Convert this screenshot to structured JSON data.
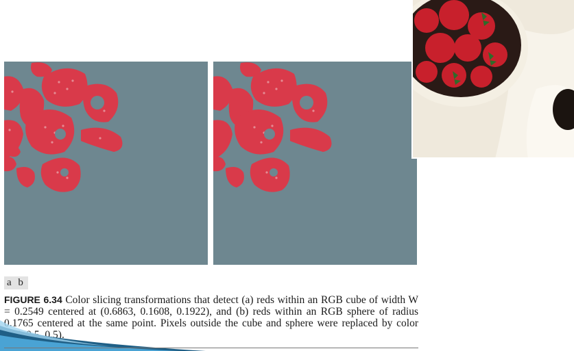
{
  "subfigure_labels": "a b",
  "caption": {
    "label": "FIGURE 6.34",
    "text": "Color slicing transformations that detect (a) reds within an RGB cube of width W = 0.2549 centered at (0.6863, 0.1608, 0.1922), and (b) reds within an RGB sphere of radius 0.1765 centered at the same point. Pixels outside the cube and sphere were replaced by color (0.5, 0.5, 0.5)."
  },
  "colors": {
    "background_gray": "#6e8790",
    "strawberry_red": "#d93a4a",
    "seed_yellow": "#e8a0a6",
    "leaf_green": "#2f6b2a"
  }
}
